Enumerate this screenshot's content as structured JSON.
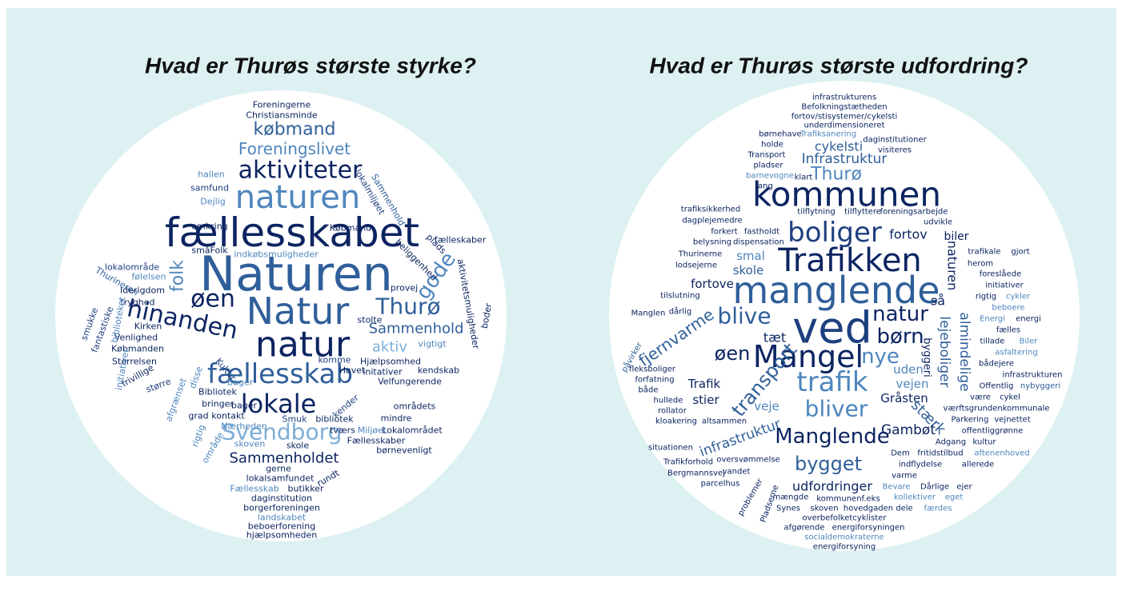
{
  "left": {
    "title": "Hvad er Thurøs største styrke?",
    "words": [
      "Foreningerne",
      "Christiansminde",
      "købmand",
      "Foreningslivet",
      "aktiviteter",
      "naturen",
      "fællesskabet",
      "Naturen",
      "Natur",
      "hinanden",
      "øen",
      "natur",
      "Thurø",
      "gode",
      "folk",
      "Sammenhold",
      "aktiv",
      "fællesskab",
      "lokale",
      "Svendborg",
      "Sammenholdet",
      "lokalmiljøet",
      "Sammenhold",
      "Dejlig",
      "hallen",
      "samfund",
      "omkring",
      "Købmand",
      "lokalområde",
      "Thurineren",
      "følelsen",
      "Iderigdom",
      "tryghed",
      "Kirken",
      "smukke",
      "fantastiske",
      "Venlighed",
      "Købmanden",
      "Størrelsen",
      "frivillige",
      "større",
      "afgrænset",
      "grad",
      "rigtig",
      "område",
      "kontakt",
      "bringer",
      "Bibliotek",
      "bager",
      "Nærheden",
      "skoven",
      "skole",
      "gerne",
      "lokalsamfundet",
      "Fællesskab",
      "butikker",
      "rundt",
      "daginstitution",
      "borgerforeningen",
      "landskabet",
      "beboerforening",
      "hjælpsomheden",
      "Smuk",
      "bibliotek",
      "kender",
      "tværs",
      "Miljøet",
      "Lokalområdet",
      "Fællesskaber",
      "mindre",
      "børnevenligt",
      "områdets",
      "Velfungerende",
      "initativer",
      "Havet",
      "Hjælpsomhed",
      "kendskab",
      "vigtigt",
      "stolte",
      "provej",
      "boder",
      "aktivitetsmuligheder",
      "beliggenhed",
      "plads",
      "fælleskaber",
      "indkøbsmuligheder",
      "småFolk",
      "Bager",
      "komme",
      "Kultur",
      "disse",
      "initiativer",
      "biblioteket"
    ]
  },
  "right": {
    "title": "Hvad er Thurøs største udfordring?",
    "words": [
      "infrastrukturens",
      "Befolkningstætheden",
      "fortov/stisystemer/cykelsti",
      "underdimensioneret",
      "børnehave",
      "Trafiksanering",
      "daginstitutioner",
      "holde",
      "cykelsti",
      "visiteres",
      "Transport",
      "Infrastruktur",
      "pladser",
      "Thurø",
      "barnevogne",
      "klart",
      "lang",
      "kommunen",
      "tilflytning",
      "tilflyttere",
      "foreningsarbejde",
      "udvikle",
      "trafiksikkerhed",
      "dagplejemedre",
      "boliger",
      "forkert",
      "fastholdt",
      "belysning",
      "dispensation",
      "fortov",
      "biler",
      "Trafikken",
      "Thurinerne",
      "smal",
      "lodsejerne",
      "skole",
      "fortove",
      "naturen",
      "manglende",
      "tilslutning",
      "blive",
      "ved",
      "natur",
      "så",
      "Manglen",
      "dårlig",
      "fjernvarme",
      "tæt",
      "børn",
      "lejeboliger",
      "almindelige",
      "byggeri",
      "øen",
      "Mangel",
      "nye",
      "påvirker",
      "fleksboliger",
      "uden",
      "transport",
      "forfatning",
      "trafik",
      "vejen",
      "Trafik",
      "både",
      "hullede",
      "stier",
      "Gråsten",
      "bliver",
      "veje",
      "rollator",
      "stærk",
      "kloakering",
      "altsammen",
      "Gambøt",
      "infrastruktur",
      "Manglende",
      "situationen",
      "oversvømmelse",
      "Trafikforhold",
      "bygget",
      "vandet",
      "Bergmannsvej",
      "parcelhus",
      "udfordringer",
      "problemer",
      "Pladserne",
      "mængde",
      "kommunenf.eks",
      "Synes",
      "skoven",
      "hovedgaden",
      "dele",
      "overbefolketcyklister",
      "afgørende",
      "energiforsyningen",
      "socialdemokraterne",
      "energiforsyning",
      "trafikale",
      "gjort",
      "herom",
      "foreslåede",
      "initiativer",
      "rigtig",
      "cykler",
      "beboere",
      "Energi",
      "energi",
      "fælles",
      "tillade",
      "Biler",
      "asfaltering",
      "bådejere",
      "infrastrukturen",
      "Offentlig",
      "nybyggeri",
      "være",
      "cykel",
      "værftsgrundenkommunale",
      "Parkering",
      "vejnettet",
      "offentliggrønne",
      "Adgang",
      "kultur",
      "Dem",
      "fritidstilbud",
      "aftenenhoved",
      "indflydelse",
      "allerede",
      "varme",
      "Bevare",
      "Dårlige",
      "ejer",
      "kollektiver",
      "eget",
      "færdes"
    ]
  }
}
